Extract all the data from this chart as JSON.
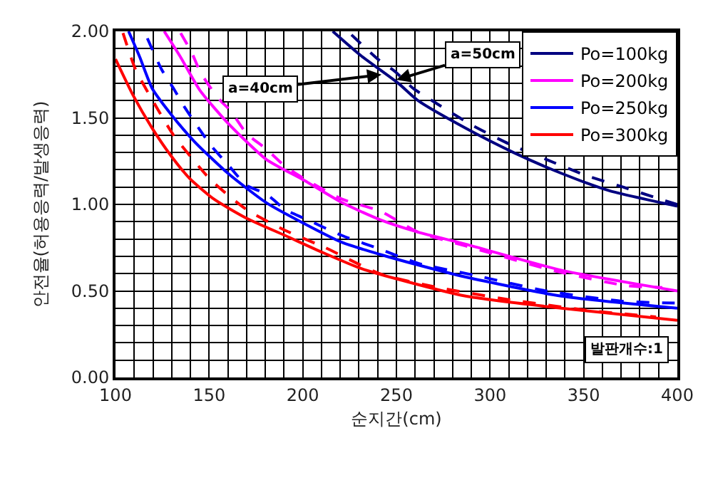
{
  "chart_data": {
    "type": "line",
    "xlabel": "순지간(cm)",
    "ylabel": "안전율(허용응력/발생응력)",
    "xlim": [
      100,
      400
    ],
    "ylim": [
      0,
      2
    ],
    "xticks": [
      100,
      {
        "value": 110,
        "label": null
      },
      {
        "value": 120,
        "label": null
      },
      {
        "value": 130,
        "label": null
      },
      {
        "value": 140,
        "label": null
      },
      150,
      {
        "value": 160,
        "label": null
      },
      {
        "value": 170,
        "label": null
      },
      {
        "value": 180,
        "label": null
      },
      {
        "value": 190,
        "label": null
      },
      200,
      {
        "value": 210,
        "label": null
      },
      {
        "value": 220,
        "label": null
      },
      {
        "value": 230,
        "label": null
      },
      {
        "value": 240,
        "label": null
      },
      250,
      {
        "value": 260,
        "label": null
      },
      {
        "value": 270,
        "label": null
      },
      {
        "value": 280,
        "label": null
      },
      {
        "value": 290,
        "label": null
      },
      300,
      {
        "value": 310,
        "label": null
      },
      {
        "value": 320,
        "label": null
      },
      {
        "value": 330,
        "label": null
      },
      {
        "value": 340,
        "label": null
      },
      350,
      {
        "value": 360,
        "label": null
      },
      {
        "value": 370,
        "label": null
      },
      {
        "value": 380,
        "label": null
      },
      {
        "value": 390,
        "label": null
      },
      400
    ],
    "yticks": [
      {
        "value": 0,
        "label": "0.00"
      },
      {
        "value": 0.1,
        "label": null
      },
      {
        "value": 0.2,
        "label": null
      },
      {
        "value": 0.3,
        "label": null
      },
      {
        "value": 0.4,
        "label": null
      },
      {
        "value": 0.5,
        "label": "0.50"
      },
      {
        "value": 0.6,
        "label": null
      },
      {
        "value": 0.7,
        "label": null
      },
      {
        "value": 0.8,
        "label": null
      },
      {
        "value": 0.9,
        "label": null
      },
      {
        "value": 1,
        "label": "1.00"
      },
      {
        "value": 1.1,
        "label": null
      },
      {
        "value": 1.2,
        "label": null
      },
      {
        "value": 1.3,
        "label": null
      },
      {
        "value": 1.4,
        "label": null
      },
      {
        "value": 1.5,
        "label": "1.50"
      },
      {
        "value": 1.6,
        "label": null
      },
      {
        "value": 1.7,
        "label": null
      },
      {
        "value": 1.8,
        "label": null
      },
      {
        "value": 1.9,
        "label": null
      },
      {
        "value": 2,
        "label": "2.00"
      }
    ],
    "grid": true,
    "legend": "top right",
    "marker": "none",
    "line_style": "solid",
    "series": [
      {
        "name": "Po=100kg",
        "color": "#000080",
        "x": [
          216,
          231,
          251,
          261.5,
          287,
          312.5,
          338,
          363.5,
          400
        ],
        "values": [
          2.0,
          1.86,
          1.7,
          1.6,
          1.44,
          1.3,
          1.18,
          1.08,
          0.99
        ]
      },
      {
        "name": "Po=200kg",
        "color": "#ff00ff",
        "x": [
          126,
          134.8,
          145,
          160,
          180.5,
          200.6,
          221,
          241.6,
          261.5,
          287,
          338,
          400
        ],
        "values": [
          2.0,
          1.85,
          1.66,
          1.47,
          1.26,
          1.14,
          1.01,
          0.91,
          0.84,
          0.77,
          0.62,
          0.5
        ]
      },
      {
        "name": "Po=250kg",
        "color": "#0000ff",
        "x": [
          107,
          113,
          119.6,
          129.7,
          142.4,
          160,
          180.5,
          200.6,
          221,
          241.6,
          261.5,
          287,
          338,
          400
        ],
        "values": [
          2.0,
          1.85,
          1.67,
          1.52,
          1.36,
          1.18,
          1.01,
          0.89,
          0.78,
          0.71,
          0.65,
          0.58,
          0.47,
          0.4
        ]
      },
      {
        "name": "Po=300kg",
        "color": "#ff0000",
        "x": [
          100,
          109.4,
          119.6,
          129.7,
          139.6,
          152.6,
          170,
          190.6,
          211,
          231,
          250,
          287,
          338,
          400
        ],
        "values": [
          1.84,
          1.63,
          1.44,
          1.28,
          1.15,
          1.03,
          0.92,
          0.82,
          0.72,
          0.63,
          0.57,
          0.47,
          0.4,
          0.33
        ]
      },
      {
        "color": "#000080",
        "line_style": "dashed",
        "x": [
          226,
          240,
          249,
          259,
          269,
          290,
          310,
          330,
          350.6,
          371,
          391,
          400
        ],
        "values": [
          1.98,
          1.84,
          1.77,
          1.67,
          1.6,
          1.46,
          1.35,
          1.26,
          1.17,
          1.1,
          1.03,
          1.0
        ]
      },
      {
        "color": "#ff00ff",
        "line_style": "dashed",
        "x": [
          134.8,
          141,
          145,
          151,
          156,
          161.5,
          170,
          180.5,
          190.6,
          200.6,
          221,
          241.6,
          261.5,
          287,
          333,
          373,
          392
        ],
        "values": [
          1.99,
          1.87,
          1.77,
          1.67,
          1.6,
          1.54,
          1.41,
          1.32,
          1.22,
          1.15,
          1.03,
          0.96,
          0.84,
          0.76,
          0.62,
          0.53,
          0.52
        ]
      },
      {
        "color": "#0000ff",
        "line_style": "dashed",
        "x": [
          117,
          124.6,
          131,
          137,
          151,
          160,
          170,
          180.5,
          190.6,
          200.6,
          221,
          241.6,
          261.5,
          292,
          330,
          371,
          398.6
        ],
        "values": [
          1.96,
          1.78,
          1.67,
          1.56,
          1.34,
          1.23,
          1.11,
          1.06,
          0.97,
          0.92,
          0.82,
          0.74,
          0.66,
          0.59,
          0.5,
          0.44,
          0.43
        ]
      },
      {
        "color": "#ff0000",
        "line_style": "dashed",
        "x": [
          104,
          110.7,
          122,
          131,
          151,
          170,
          190.6,
          212,
          241,
          272,
          310,
          350.6,
          388.6
        ],
        "values": [
          1.99,
          1.78,
          1.56,
          1.4,
          1.14,
          0.97,
          0.85,
          0.75,
          0.6,
          0.52,
          0.45,
          0.39,
          0.35
        ]
      }
    ],
    "annotations": [
      {
        "text": "a=40cm",
        "x": 242,
        "y": 1.75
      },
      {
        "text": "a=50cm",
        "x": 250,
        "y": 1.72
      },
      "발판개수:1"
    ]
  }
}
